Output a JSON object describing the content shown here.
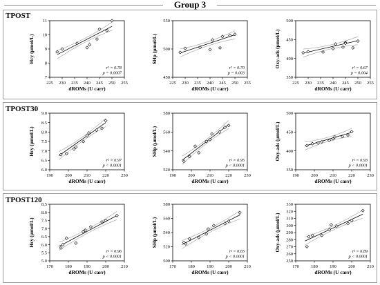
{
  "figure": {
    "group_title": "Group 3"
  },
  "rows": [
    {
      "label": "TPOST"
    },
    {
      "label": "TPOST30"
    },
    {
      "label": "TPOST120"
    }
  ],
  "chart_data": [
    {
      "type": "scatter",
      "row": 0,
      "col": 0,
      "xlabel": "dROMs (U carr)",
      "ylabel": "Hcy (µmol/L)",
      "xlim": [
        225,
        255
      ],
      "ylim": [
        7,
        11
      ],
      "xticks": [
        225,
        230,
        235,
        240,
        245,
        250,
        255
      ],
      "yticks": [
        7,
        8,
        9,
        10,
        11
      ],
      "points": [
        [
          228,
          8.8
        ],
        [
          230,
          9.0
        ],
        [
          236,
          9.4
        ],
        [
          240,
          9.1
        ],
        [
          241,
          9.3
        ],
        [
          244,
          9.7
        ],
        [
          245,
          10.4
        ],
        [
          248,
          10.3
        ],
        [
          250,
          11.0
        ]
      ],
      "fit": [
        [
          228,
          8.6
        ],
        [
          250,
          10.6
        ]
      ],
      "annotation": [
        "r² = 0.78",
        "p = 0.0007"
      ]
    },
    {
      "type": "scatter",
      "row": 0,
      "col": 1,
      "xlabel": "dROMs (U carr)",
      "ylabel": "SHp (µmol/L)",
      "xlim": [
        225,
        255
      ],
      "ylim": [
        450,
        550
      ],
      "xticks": [
        225,
        230,
        235,
        240,
        245,
        250,
        255
      ],
      "yticks": [
        450,
        500,
        550
      ],
      "points": [
        [
          228,
          494
        ],
        [
          230,
          501
        ],
        [
          236,
          503
        ],
        [
          240,
          499
        ],
        [
          241,
          516
        ],
        [
          244,
          502
        ],
        [
          245,
          522
        ],
        [
          248,
          524
        ],
        [
          250,
          526
        ]
      ],
      "fit": [
        [
          228,
          493
        ],
        [
          250,
          525
        ]
      ],
      "annotation": [
        "r² = 0.70",
        "p = 0.003"
      ]
    },
    {
      "type": "scatter",
      "row": 0,
      "col": 2,
      "xlabel": "dROMs (U carr)",
      "ylabel": "Oxy-ads (µmol/L)",
      "xlim": [
        225,
        255
      ],
      "ylim": [
        350,
        500
      ],
      "xticks": [
        225,
        230,
        235,
        240,
        245,
        250,
        255
      ],
      "yticks": [
        350,
        400,
        450,
        500
      ],
      "points": [
        [
          228,
          415
        ],
        [
          230,
          418
        ],
        [
          236,
          417
        ],
        [
          240,
          426
        ],
        [
          241,
          438
        ],
        [
          244,
          430
        ],
        [
          245,
          442
        ],
        [
          245,
          440
        ],
        [
          248,
          428
        ],
        [
          250,
          446
        ]
      ],
      "fit": [
        [
          228,
          414
        ],
        [
          250,
          447
        ]
      ],
      "annotation": [
        "r² = 0.67",
        "p = 0.004"
      ]
    },
    {
      "type": "scatter",
      "row": 1,
      "col": 0,
      "xlabel": "dROMs (U carr)",
      "ylabel": "Hcy (µmol/L)",
      "xlim": [
        190,
        230
      ],
      "ylim": [
        6.0,
        9.0
      ],
      "xticks": [
        190,
        200,
        210,
        220,
        230
      ],
      "yticks": [
        6.0,
        6.5,
        7.0,
        7.5,
        8.0,
        8.5,
        9.0
      ],
      "points": [
        [
          196,
          6.8
        ],
        [
          199,
          6.85
        ],
        [
          203,
          7.1
        ],
        [
          204,
          7.2
        ],
        [
          208,
          7.5
        ],
        [
          210,
          7.8
        ],
        [
          211,
          7.95
        ],
        [
          215,
          8.1
        ],
        [
          218,
          8.2
        ],
        [
          220,
          8.6
        ]
      ],
      "fit": [
        [
          195,
          6.75
        ],
        [
          220,
          8.5
        ]
      ],
      "annotation": [
        "r² = 0.97",
        "p < 0.0001"
      ]
    },
    {
      "type": "scatter",
      "row": 1,
      "col": 1,
      "xlabel": "dROMs (U carr)",
      "ylabel": "SHp (µmol/L)",
      "xlim": [
        190,
        230
      ],
      "ylim": [
        520,
        580
      ],
      "xticks": [
        190,
        200,
        210,
        220,
        230
      ],
      "yticks": [
        520,
        540,
        560,
        580
      ],
      "points": [
        [
          196,
          529
        ],
        [
          199,
          534
        ],
        [
          202,
          545
        ],
        [
          204,
          538
        ],
        [
          208,
          550
        ],
        [
          210,
          552
        ],
        [
          211,
          558
        ],
        [
          215,
          560
        ],
        [
          218,
          565
        ],
        [
          220,
          567
        ]
      ],
      "fit": [
        [
          195,
          530
        ],
        [
          220,
          568
        ]
      ],
      "annotation": [
        "r² = 0.95",
        "p < 0.0001"
      ]
    },
    {
      "type": "scatter",
      "row": 1,
      "col": 2,
      "xlabel": "dROMs (U carr)",
      "ylabel": "Oxy-ads (µmol/L)",
      "xlim": [
        190,
        230
      ],
      "ylim": [
        350,
        500
      ],
      "xticks": [
        190,
        200,
        210,
        220,
        230
      ],
      "yticks": [
        350,
        400,
        450,
        500
      ],
      "points": [
        [
          196,
          414
        ],
        [
          199,
          419
        ],
        [
          202,
          421
        ],
        [
          204,
          424
        ],
        [
          208,
          428
        ],
        [
          210,
          432
        ],
        [
          211,
          437
        ],
        [
          215,
          438
        ],
        [
          218,
          442
        ],
        [
          220,
          451
        ]
      ],
      "fit": [
        [
          195,
          413
        ],
        [
          220,
          449
        ]
      ],
      "annotation": [
        "r² = 0.93",
        "p < 0.0001"
      ]
    },
    {
      "type": "scatter",
      "row": 2,
      "col": 0,
      "xlabel": "dROMs (U carr)",
      "ylabel": "Hcy (µmol/L)",
      "xlim": [
        170,
        210
      ],
      "ylim": [
        5.0,
        8.5
      ],
      "xticks": [
        170,
        180,
        190,
        200,
        210
      ],
      "yticks": [
        5.0,
        5.5,
        6.0,
        6.5,
        7.0,
        7.5,
        8.0,
        8.5
      ],
      "points": [
        [
          176,
          5.8
        ],
        [
          177,
          6.0
        ],
        [
          179,
          6.4
        ],
        [
          184,
          6.1
        ],
        [
          188,
          6.8
        ],
        [
          189,
          6.9
        ],
        [
          192,
          7.1
        ],
        [
          198,
          7.4
        ],
        [
          200,
          7.5
        ],
        [
          206,
          7.8
        ]
      ],
      "fit": [
        [
          175,
          5.9
        ],
        [
          206,
          7.8
        ]
      ],
      "annotation": [
        "r² = 0.96",
        "p < 0.0001"
      ]
    },
    {
      "type": "scatter",
      "row": 2,
      "col": 1,
      "xlabel": "dROMs (U carr)",
      "ylabel": "SHp (µmol/L)",
      "xlim": [
        170,
        210
      ],
      "ylim": [
        500,
        580
      ],
      "xticks": [
        170,
        180,
        190,
        200,
        210
      ],
      "yticks": [
        500,
        520,
        540,
        560,
        580
      ],
      "points": [
        [
          176,
          526
        ],
        [
          177,
          524
        ],
        [
          179,
          531
        ],
        [
          184,
          533
        ],
        [
          188,
          538
        ],
        [
          189,
          545
        ],
        [
          192,
          550
        ],
        [
          198,
          553
        ],
        [
          200,
          556
        ],
        [
          206,
          568
        ]
      ],
      "fit": [
        [
          175,
          523
        ],
        [
          206,
          565
        ]
      ],
      "annotation": [
        "r² = 0.65",
        "p < 0.0001"
      ]
    },
    {
      "type": "scatter",
      "row": 2,
      "col": 2,
      "xlabel": "dROMs (U carr)",
      "ylabel": "Oxy-ads (µmol/L)",
      "xlim": [
        170,
        210
      ],
      "ylim": [
        250,
        330
      ],
      "xticks": [
        170,
        180,
        190,
        200,
        210
      ],
      "yticks": [
        250,
        260,
        270,
        280,
        290,
        300,
        310,
        320,
        330
      ],
      "points": [
        [
          176,
          270
        ],
        [
          177,
          284
        ],
        [
          179,
          286
        ],
        [
          184,
          286
        ],
        [
          188,
          294
        ],
        [
          189,
          301
        ],
        [
          192,
          299
        ],
        [
          198,
          303
        ],
        [
          200,
          307
        ],
        [
          206,
          321
        ]
      ],
      "fit": [
        [
          175,
          278
        ],
        [
          206,
          316
        ]
      ],
      "annotation": [
        "r² = 0.89",
        "p < 0.0001"
      ]
    }
  ]
}
